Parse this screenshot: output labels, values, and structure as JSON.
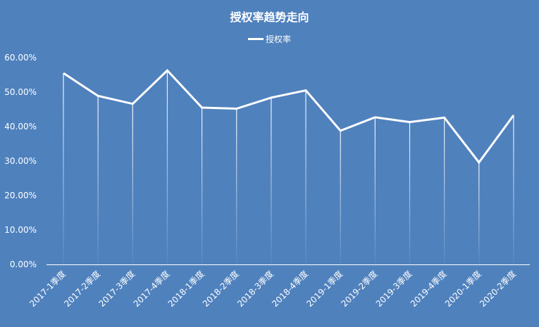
{
  "chart_data": {
    "type": "line",
    "title": "授权率趋势走向",
    "categories": [
      "2017-1季度",
      "2017-2季度",
      "2017-3季度",
      "2017-4季度",
      "2018-1季度",
      "2018-2季度",
      "2018-3季度",
      "2018-4季度",
      "2019-1季度",
      "2019-2季度",
      "2019-3季度",
      "2019-4季度",
      "2020-1季度",
      "2020-2季度"
    ],
    "series": [
      {
        "name": "授权率",
        "values": [
          55.5,
          48.9,
          46.6,
          56.3,
          45.5,
          45.2,
          48.4,
          50.5,
          38.8,
          42.7,
          41.3,
          42.6,
          29.6,
          43.3
        ],
        "color": "#ffffff"
      }
    ],
    "ylim": [
      0,
      60
    ],
    "yticks": [
      "0.00%",
      "10.00%",
      "20.00%",
      "30.00%",
      "40.00%",
      "50.00%",
      "60.00%"
    ],
    "grid": false,
    "drop_lines": true,
    "legend": "top",
    "background": "#4f81bd"
  }
}
